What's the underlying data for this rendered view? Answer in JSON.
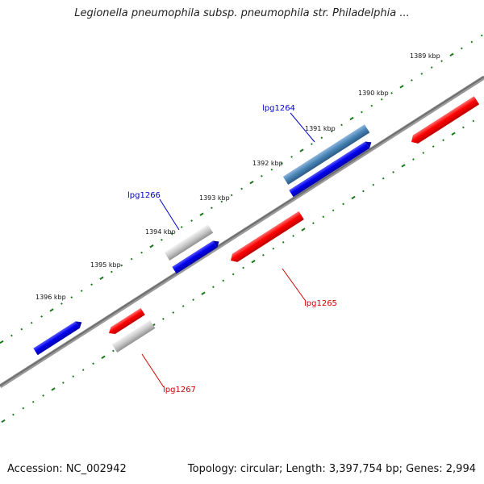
{
  "title": "Legionella pneumophila subsp. pneumophila str. Philadelphia ...",
  "footer": {
    "accession": "Accession: NC_002942",
    "summary": "Topology: circular; Length: 3,397,754 bp; Genes: 2,994"
  },
  "colors": {
    "forward_gene": "#0000ee",
    "reverse_gene": "#ff0000",
    "selected_gene": "#4682b4",
    "pseudo_gene": "#b8b8b8",
    "backbone": "#808080",
    "ticks": "#1a7a1a",
    "forward_label": "#0000cc",
    "reverse_label": "#cc0000"
  },
  "ruler": {
    "ticks": [
      "1389 kbp",
      "1390 kbp",
      "1391 kbp",
      "1392 kbp",
      "1393 kbp",
      "1394 kbp",
      "1395 kbp",
      "1396 kbp"
    ]
  },
  "genes": [
    {
      "label": "lpg1264",
      "strand": "forward"
    },
    {
      "label": "lpg1265",
      "strand": "reverse"
    },
    {
      "label": "lpg1266",
      "strand": "forward"
    },
    {
      "label": "lpg1267",
      "strand": "reverse"
    }
  ]
}
